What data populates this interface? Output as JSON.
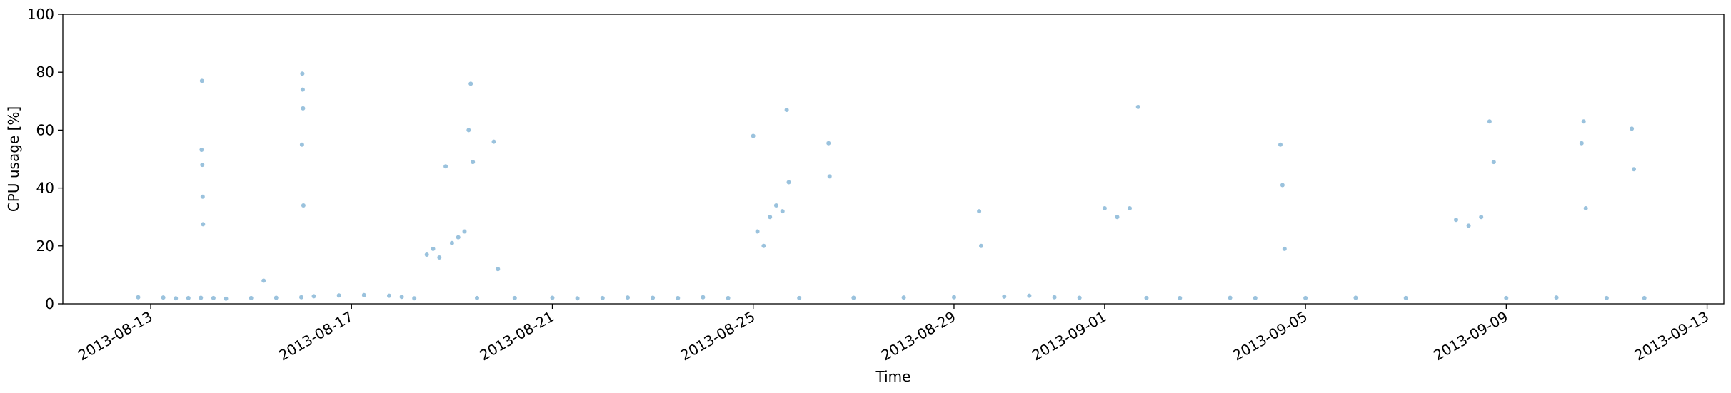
{
  "chart_data": {
    "type": "scatter",
    "title": "",
    "xlabel": "Time",
    "ylabel": "CPU usage [%]",
    "ylim": [
      0,
      100
    ],
    "xlim": [
      "2013-08-11T06:00",
      "2013-09-13T08:00"
    ],
    "yticks": [
      0,
      20,
      40,
      60,
      80,
      100
    ],
    "xticks": [
      "2013-08-13",
      "2013-08-17",
      "2013-08-21",
      "2013-08-25",
      "2013-08-29",
      "2013-09-01",
      "2013-09-05",
      "2013-09-09",
      "2013-09-13"
    ],
    "grid": false,
    "marker_color": "#1f77b4",
    "marker_opacity": 0.45,
    "series": [
      {
        "name": "",
        "points": [
          [
            "2013-08-12T18:00",
            2.3
          ],
          [
            "2013-08-13T06:00",
            2.2
          ],
          [
            "2013-08-13T12:00",
            1.9
          ],
          [
            "2013-08-13T18:00",
            2.0
          ],
          [
            "2013-08-14T00:00",
            2.1
          ],
          [
            "2013-08-14T00:20",
            53.2
          ],
          [
            "2013-08-14T00:30",
            77.0
          ],
          [
            "2013-08-14T00:40",
            48.0
          ],
          [
            "2013-08-14T00:50",
            37.0
          ],
          [
            "2013-08-14T01:00",
            27.5
          ],
          [
            "2013-08-14T06:00",
            2.0
          ],
          [
            "2013-08-14T12:00",
            1.8
          ],
          [
            "2013-08-15T00:00",
            2.0
          ],
          [
            "2013-08-15T06:00",
            8.0
          ],
          [
            "2013-08-15T12:00",
            2.1
          ],
          [
            "2013-08-16T00:00",
            2.3
          ],
          [
            "2013-08-16T00:20",
            55.0
          ],
          [
            "2013-08-16T00:30",
            79.5
          ],
          [
            "2013-08-16T00:40",
            74.0
          ],
          [
            "2013-08-16T00:50",
            67.5
          ],
          [
            "2013-08-16T01:00",
            34.0
          ],
          [
            "2013-08-16T06:00",
            2.6
          ],
          [
            "2013-08-16T18:00",
            2.9
          ],
          [
            "2013-08-17T06:00",
            3.0
          ],
          [
            "2013-08-17T18:00",
            2.8
          ],
          [
            "2013-08-18T00:00",
            2.4
          ],
          [
            "2013-08-18T06:00",
            1.9
          ],
          [
            "2013-08-18T12:00",
            17.0
          ],
          [
            "2013-08-18T15:00",
            19.0
          ],
          [
            "2013-08-18T18:00",
            16.0
          ],
          [
            "2013-08-18T21:00",
            47.5
          ],
          [
            "2013-08-19T00:00",
            21.0
          ],
          [
            "2013-08-19T03:00",
            23.0
          ],
          [
            "2013-08-19T06:00",
            25.0
          ],
          [
            "2013-08-19T08:00",
            60.0
          ],
          [
            "2013-08-19T09:00",
            76.0
          ],
          [
            "2013-08-19T10:00",
            49.0
          ],
          [
            "2013-08-19T12:00",
            2.0
          ],
          [
            "2013-08-19T20:00",
            56.0
          ],
          [
            "2013-08-19T22:00",
            12.0
          ],
          [
            "2013-08-20T06:00",
            2.0
          ],
          [
            "2013-08-21T00:00",
            2.1
          ],
          [
            "2013-08-21T12:00",
            1.9
          ],
          [
            "2013-08-22T00:00",
            2.0
          ],
          [
            "2013-08-22T12:00",
            2.2
          ],
          [
            "2013-08-23T00:00",
            2.1
          ],
          [
            "2013-08-23T12:00",
            2.0
          ],
          [
            "2013-08-24T00:00",
            2.3
          ],
          [
            "2013-08-24T12:00",
            2.0
          ],
          [
            "2013-08-25T00:00",
            58.0
          ],
          [
            "2013-08-25T02:00",
            25.0
          ],
          [
            "2013-08-25T05:00",
            20.0
          ],
          [
            "2013-08-25T08:00",
            30.0
          ],
          [
            "2013-08-25T11:00",
            34.0
          ],
          [
            "2013-08-25T14:00",
            32.0
          ],
          [
            "2013-08-25T16:00",
            67.0
          ],
          [
            "2013-08-25T17:00",
            42.0
          ],
          [
            "2013-08-25T22:00",
            2.0
          ],
          [
            "2013-08-26T12:00",
            55.5
          ],
          [
            "2013-08-26T12:30",
            44.0
          ],
          [
            "2013-08-27T00:00",
            2.1
          ],
          [
            "2013-08-28T00:00",
            2.2
          ],
          [
            "2013-08-29T00:00",
            2.3
          ],
          [
            "2013-08-29T12:00",
            32.0
          ],
          [
            "2013-08-29T13:00",
            20.0
          ],
          [
            "2013-08-30T00:00",
            2.5
          ],
          [
            "2013-08-30T12:00",
            2.8
          ],
          [
            "2013-08-31T00:00",
            2.3
          ],
          [
            "2013-08-31T12:00",
            2.1
          ],
          [
            "2013-09-01T00:00",
            33.0
          ],
          [
            "2013-09-01T06:00",
            30.0
          ],
          [
            "2013-09-01T12:00",
            33.0
          ],
          [
            "2013-09-01T16:00",
            68.0
          ],
          [
            "2013-09-01T20:00",
            2.0
          ],
          [
            "2013-09-02T12:00",
            2.0
          ],
          [
            "2013-09-03T12:00",
            2.1
          ],
          [
            "2013-09-04T00:00",
            2.0
          ],
          [
            "2013-09-04T12:00",
            55.0
          ],
          [
            "2013-09-04T13:00",
            41.0
          ],
          [
            "2013-09-04T14:00",
            19.0
          ],
          [
            "2013-09-05T00:00",
            2.0
          ],
          [
            "2013-09-06T00:00",
            2.1
          ],
          [
            "2013-09-07T00:00",
            2.0
          ],
          [
            "2013-09-08T00:00",
            29.0
          ],
          [
            "2013-09-08T06:00",
            27.0
          ],
          [
            "2013-09-08T12:00",
            30.0
          ],
          [
            "2013-09-08T16:00",
            63.0
          ],
          [
            "2013-09-08T18:00",
            49.0
          ],
          [
            "2013-09-09T00:00",
            2.0
          ],
          [
            "2013-09-10T00:00",
            2.2
          ],
          [
            "2013-09-10T12:00",
            55.5
          ],
          [
            "2013-09-10T13:00",
            63.0
          ],
          [
            "2013-09-10T14:00",
            33.0
          ],
          [
            "2013-09-11T00:00",
            2.0
          ],
          [
            "2013-09-11T12:00",
            60.5
          ],
          [
            "2013-09-11T13:00",
            46.5
          ],
          [
            "2013-09-11T18:00",
            2.0
          ]
        ]
      }
    ]
  }
}
